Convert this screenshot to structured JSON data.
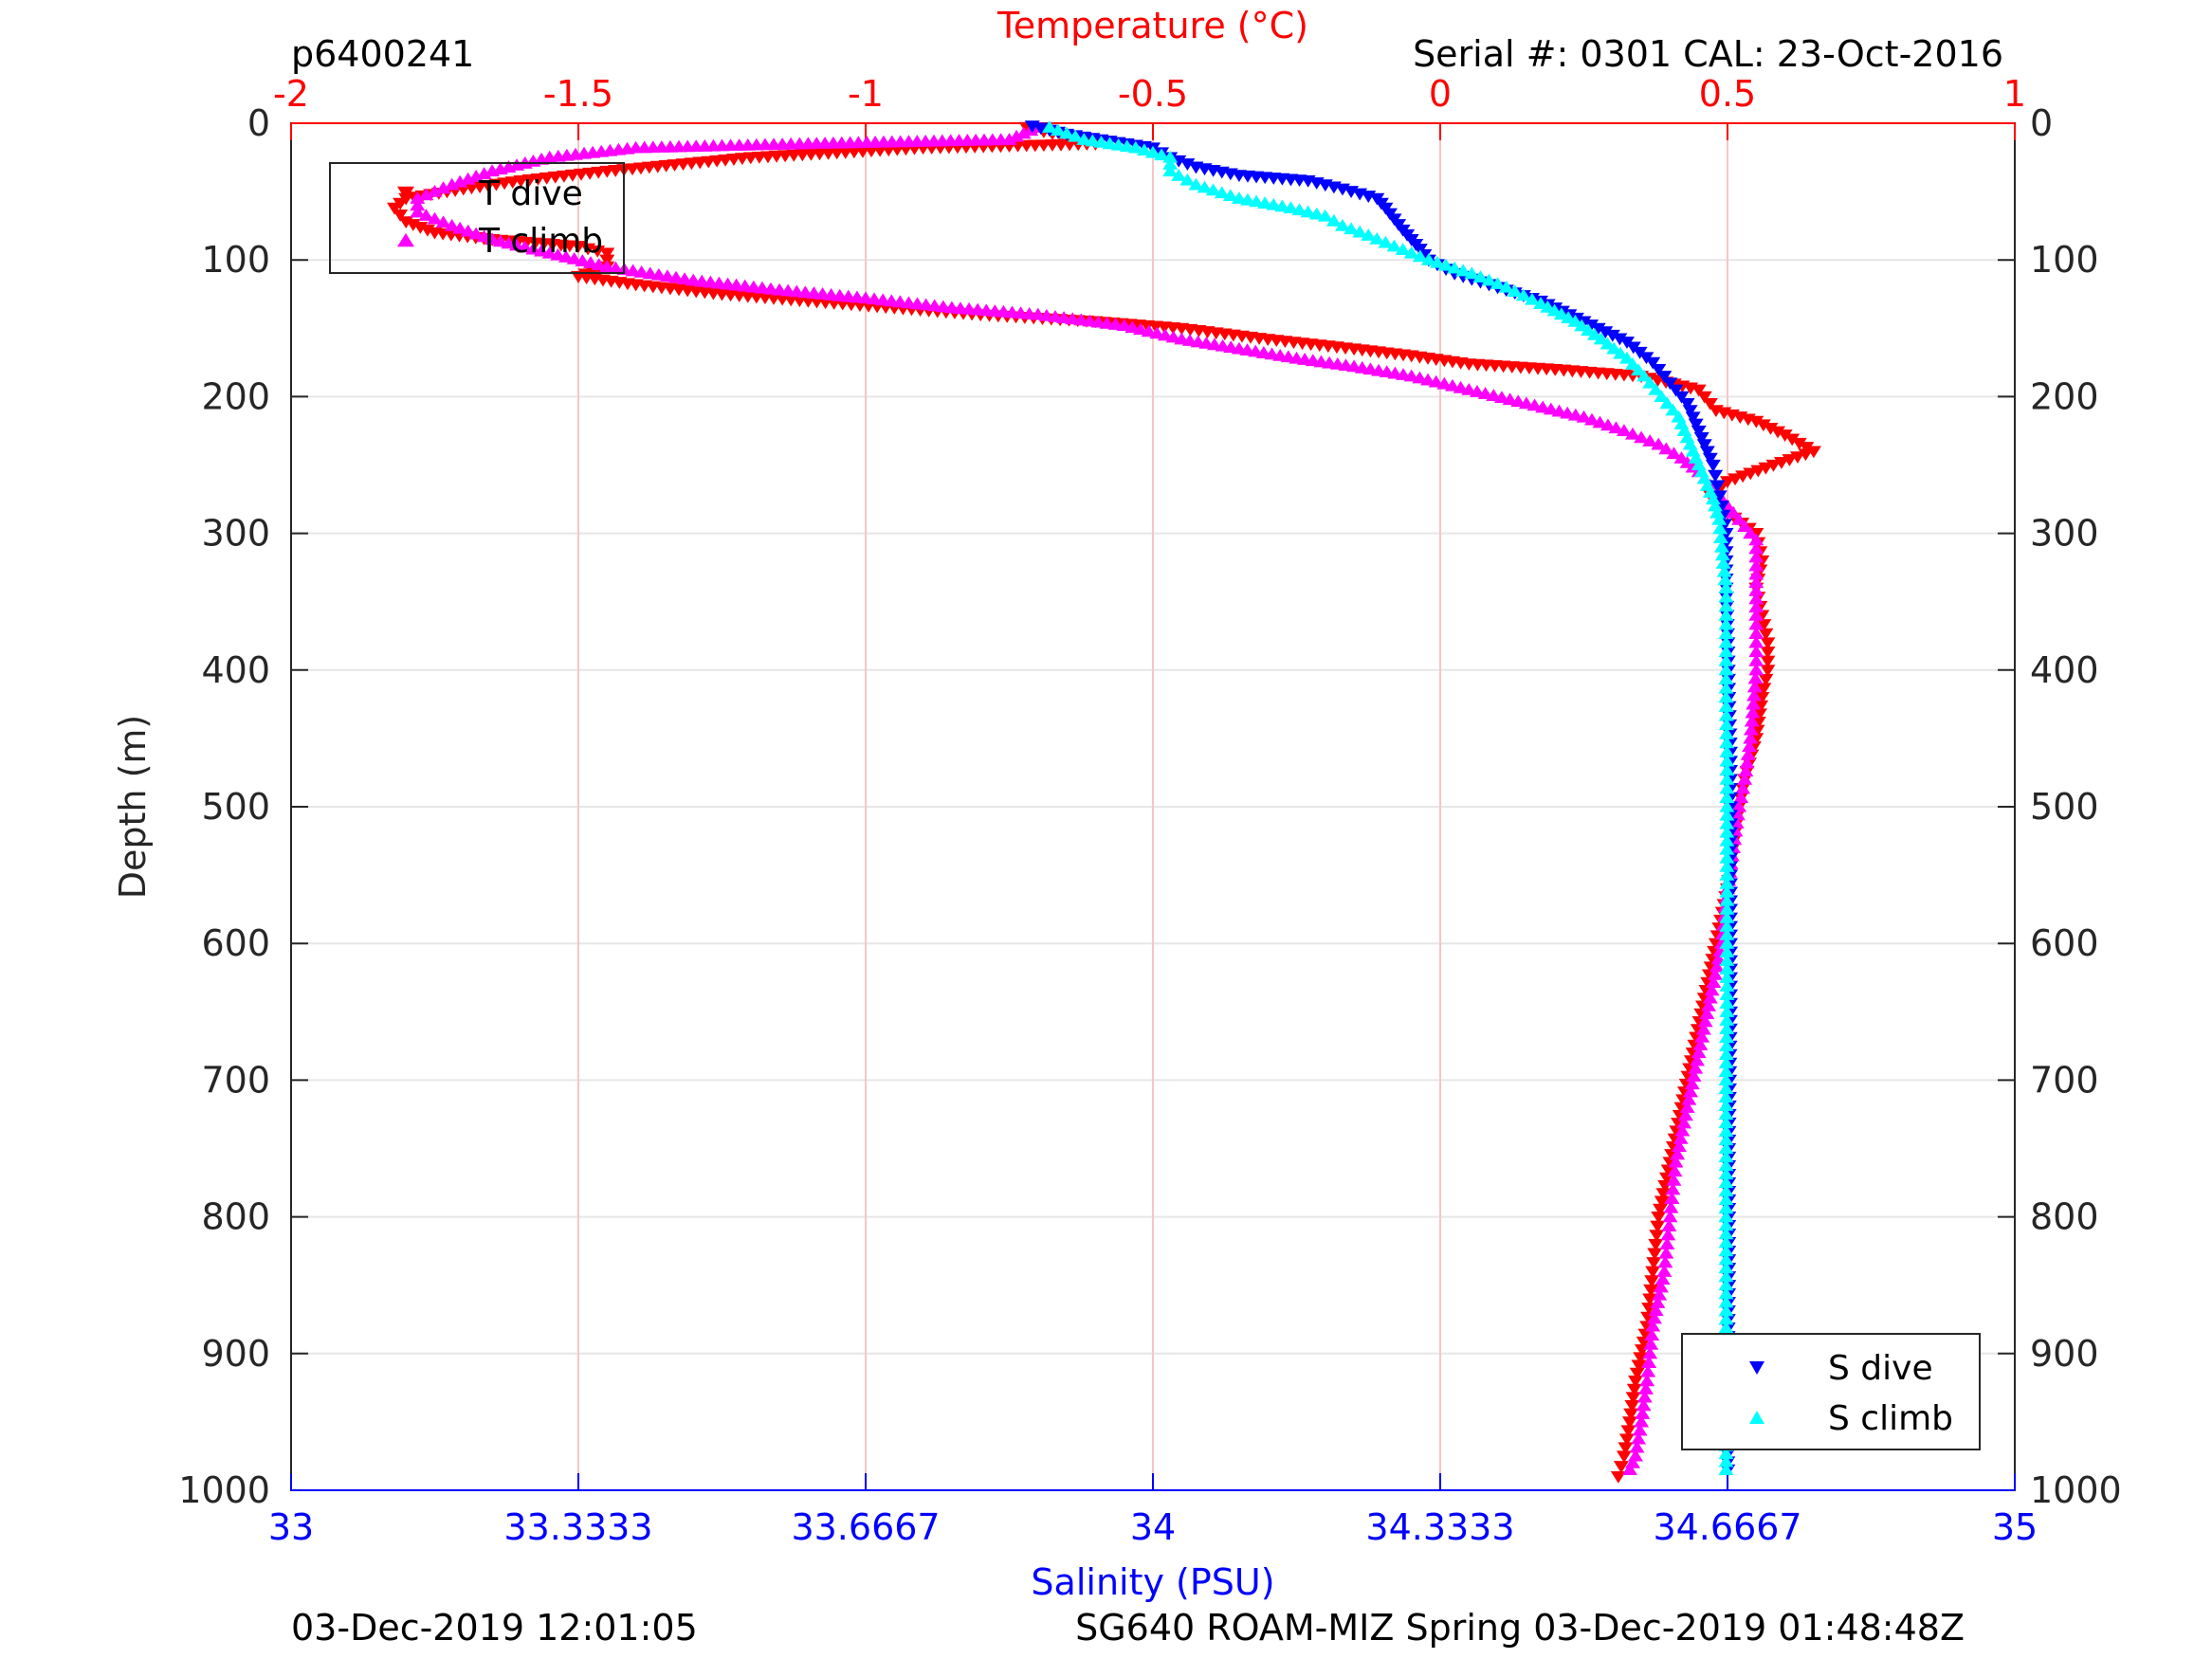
{
  "header": {
    "profile_id": "p6400241",
    "serial": "Serial #: 0301  CAL: 23-Oct-2016"
  },
  "footer": {
    "left": "03-Dec-2019 12:01:05",
    "right": "SG640 ROAM-MIZ Spring 03-Dec-2019 01:48:48Z"
  },
  "colors": {
    "t_dive": "#ff0000",
    "t_climb": "#ff00ff",
    "s_dive": "#0000ff",
    "s_climb": "#00ffff",
    "temp_axis": "#ff0000",
    "sal_axis": "#0000ff",
    "grid": "#e6e6e6",
    "temp_grid": "#f5c6c6"
  },
  "chart_data": {
    "type": "scatter",
    "ylabel": "Depth (m)",
    "ylim": [
      1000,
      0
    ],
    "yticks": [
      0,
      100,
      200,
      300,
      400,
      500,
      600,
      700,
      800,
      900,
      1000
    ],
    "x_top": {
      "label": "Temperature (°C)",
      "lim": [
        -2,
        1
      ],
      "ticks": [
        -2,
        -1.5,
        -1,
        -0.5,
        0,
        0.5,
        1
      ],
      "tick_labels": [
        "-2",
        "-1.5",
        "-1",
        "-0.5",
        "0",
        "0.5",
        "1"
      ]
    },
    "x_bottom": {
      "label": "Salinity (PSU)",
      "lim": [
        33,
        35
      ],
      "ticks": [
        33,
        33.3333,
        33.6667,
        34,
        34.3333,
        34.6667,
        35
      ],
      "tick_labels": [
        "33",
        "33.3333",
        "33.6667",
        "34",
        "34.3333",
        "34.6667",
        "35"
      ]
    },
    "grid": true,
    "legends": [
      {
        "placement": "top-left",
        "entries": [
          "T dive",
          "T climb"
        ]
      },
      {
        "placement": "bottom-right",
        "entries": [
          "S dive",
          "S climb"
        ]
      }
    ],
    "series": [
      {
        "name": "T dive",
        "axis": "temperature",
        "marker": "triangle-down",
        "points": [
          [
            -0.72,
            3
          ],
          [
            -0.6,
            15
          ],
          [
            -0.9,
            18
          ],
          [
            -1.2,
            25
          ],
          [
            -1.45,
            35
          ],
          [
            -1.6,
            42
          ],
          [
            -1.7,
            48
          ],
          [
            -1.8,
            55
          ],
          [
            -1.82,
            62
          ],
          [
            -1.8,
            72
          ],
          [
            -1.75,
            80
          ],
          [
            -1.65,
            85
          ],
          [
            -1.5,
            90
          ],
          [
            -1.45,
            95
          ],
          [
            -1.45,
            105
          ],
          [
            -1.5,
            112
          ],
          [
            -1.4,
            118
          ],
          [
            -1.25,
            125
          ],
          [
            -1.1,
            130
          ],
          [
            -0.95,
            135
          ],
          [
            -0.8,
            140
          ],
          [
            -0.6,
            145
          ],
          [
            -0.45,
            150
          ],
          [
            -0.3,
            158
          ],
          [
            -0.15,
            165
          ],
          [
            -0.05,
            170
          ],
          [
            0.05,
            176
          ],
          [
            0.2,
            180
          ],
          [
            0.35,
            185
          ],
          [
            0.45,
            195
          ],
          [
            0.48,
            210
          ],
          [
            0.55,
            218
          ],
          [
            0.6,
            228
          ],
          [
            0.65,
            240
          ],
          [
            0.58,
            250
          ],
          [
            0.5,
            262
          ],
          [
            0.47,
            272
          ],
          [
            0.5,
            285
          ],
          [
            0.55,
            300
          ],
          [
            0.56,
            320
          ],
          [
            0.55,
            340
          ],
          [
            0.56,
            360
          ],
          [
            0.57,
            380
          ],
          [
            0.57,
            400
          ],
          [
            0.56,
            420
          ],
          [
            0.55,
            450
          ],
          [
            0.53,
            480
          ],
          [
            0.52,
            500
          ],
          [
            0.51,
            530
          ],
          [
            0.5,
            560
          ],
          [
            0.48,
            600
          ],
          [
            0.46,
            640
          ],
          [
            0.44,
            680
          ],
          [
            0.42,
            720
          ],
          [
            0.4,
            760
          ],
          [
            0.38,
            800
          ],
          [
            0.37,
            840
          ],
          [
            0.36,
            880
          ],
          [
            0.34,
            920
          ],
          [
            0.33,
            950
          ],
          [
            0.32,
            975
          ],
          [
            0.31,
            990
          ]
        ]
      },
      {
        "name": "T climb",
        "axis": "temperature",
        "marker": "triangle-up",
        "points": [
          [
            -0.7,
            3
          ],
          [
            -0.75,
            12
          ],
          [
            -1.1,
            15
          ],
          [
            -1.4,
            18
          ],
          [
            -1.55,
            25
          ],
          [
            -1.65,
            35
          ],
          [
            -1.72,
            45
          ],
          [
            -1.78,
            55
          ],
          [
            -1.78,
            65
          ],
          [
            -1.72,
            75
          ],
          [
            -1.65,
            85
          ],
          [
            -1.55,
            95
          ],
          [
            -1.45,
            105
          ],
          [
            -1.3,
            115
          ],
          [
            -1.15,
            122
          ],
          [
            -1.0,
            128
          ],
          [
            -0.85,
            135
          ],
          [
            -0.7,
            140
          ],
          [
            -0.55,
            148
          ],
          [
            -0.45,
            158
          ],
          [
            -0.35,
            165
          ],
          [
            -0.25,
            172
          ],
          [
            -0.15,
            178
          ],
          [
            -0.05,
            185
          ],
          [
            0.05,
            195
          ],
          [
            0.15,
            205
          ],
          [
            0.25,
            215
          ],
          [
            0.32,
            225
          ],
          [
            0.38,
            235
          ],
          [
            0.42,
            245
          ],
          [
            0.45,
            255
          ],
          [
            0.47,
            265
          ],
          [
            0.49,
            275
          ],
          [
            0.51,
            285
          ],
          [
            0.53,
            295
          ],
          [
            0.55,
            305
          ],
          [
            0.55,
            330
          ],
          [
            0.55,
            360
          ],
          [
            0.55,
            400
          ],
          [
            0.54,
            450
          ],
          [
            0.53,
            480
          ],
          [
            0.52,
            500
          ],
          [
            0.51,
            530
          ],
          [
            0.5,
            560
          ],
          [
            0.49,
            600
          ],
          [
            0.47,
            640
          ],
          [
            0.45,
            680
          ],
          [
            0.43,
            720
          ],
          [
            0.41,
            760
          ],
          [
            0.4,
            800
          ],
          [
            0.39,
            840
          ],
          [
            0.37,
            880
          ],
          [
            0.36,
            920
          ],
          [
            0.35,
            950
          ],
          [
            0.34,
            975
          ],
          [
            0.33,
            985
          ]
        ]
      },
      {
        "name": "S dive",
        "axis": "salinity",
        "marker": "triangle-down",
        "points": [
          [
            33.86,
            2
          ],
          [
            33.9,
            8
          ],
          [
            34.0,
            18
          ],
          [
            34.02,
            25
          ],
          [
            34.05,
            32
          ],
          [
            34.1,
            38
          ],
          [
            34.18,
            42
          ],
          [
            34.22,
            48
          ],
          [
            34.26,
            55
          ],
          [
            34.27,
            62
          ],
          [
            34.28,
            70
          ],
          [
            34.29,
            78
          ],
          [
            34.3,
            85
          ],
          [
            34.31,
            92
          ],
          [
            34.32,
            100
          ],
          [
            34.35,
            110
          ],
          [
            34.4,
            120
          ],
          [
            34.45,
            130
          ],
          [
            34.5,
            145
          ],
          [
            34.55,
            160
          ],
          [
            34.58,
            175
          ],
          [
            34.6,
            190
          ],
          [
            34.62,
            205
          ],
          [
            34.63,
            220
          ],
          [
            34.64,
            235
          ],
          [
            34.65,
            250
          ],
          [
            34.655,
            265
          ],
          [
            34.66,
            280
          ],
          [
            34.665,
            300
          ],
          [
            34.665,
            320
          ],
          [
            34.665,
            340
          ],
          [
            34.667,
            380
          ],
          [
            34.668,
            420
          ],
          [
            34.67,
            460
          ],
          [
            34.67,
            500
          ],
          [
            34.67,
            550
          ],
          [
            34.67,
            600
          ],
          [
            34.67,
            650
          ],
          [
            34.669,
            700
          ],
          [
            34.668,
            750
          ],
          [
            34.668,
            800
          ],
          [
            34.668,
            850
          ],
          [
            34.667,
            900
          ],
          [
            34.667,
            950
          ],
          [
            34.667,
            985
          ]
        ]
      },
      {
        "name": "S climb",
        "axis": "salinity",
        "marker": "triangle-up",
        "points": [
          [
            33.88,
            3
          ],
          [
            33.92,
            12
          ],
          [
            33.98,
            18
          ],
          [
            34.02,
            25
          ],
          [
            34.02,
            35
          ],
          [
            34.05,
            45
          ],
          [
            34.1,
            55
          ],
          [
            34.16,
            62
          ],
          [
            34.2,
            68
          ],
          [
            34.22,
            75
          ],
          [
            34.25,
            82
          ],
          [
            34.28,
            90
          ],
          [
            34.32,
            100
          ],
          [
            34.37,
            110
          ],
          [
            34.41,
            120
          ],
          [
            34.45,
            132
          ],
          [
            34.49,
            145
          ],
          [
            34.52,
            158
          ],
          [
            34.55,
            172
          ],
          [
            34.57,
            185
          ],
          [
            34.59,
            200
          ],
          [
            34.61,
            215
          ],
          [
            34.62,
            230
          ],
          [
            34.63,
            245
          ],
          [
            34.64,
            260
          ],
          [
            34.65,
            275
          ],
          [
            34.657,
            290
          ],
          [
            34.66,
            310
          ],
          [
            34.665,
            340
          ],
          [
            34.665,
            380
          ],
          [
            34.665,
            420
          ],
          [
            34.666,
            460
          ],
          [
            34.666,
            500
          ],
          [
            34.666,
            550
          ],
          [
            34.666,
            600
          ],
          [
            34.666,
            650
          ],
          [
            34.665,
            700
          ],
          [
            34.665,
            750
          ],
          [
            34.665,
            800
          ],
          [
            34.665,
            850
          ],
          [
            34.665,
            900
          ],
          [
            34.665,
            950
          ],
          [
            34.665,
            985
          ]
        ]
      }
    ]
  }
}
